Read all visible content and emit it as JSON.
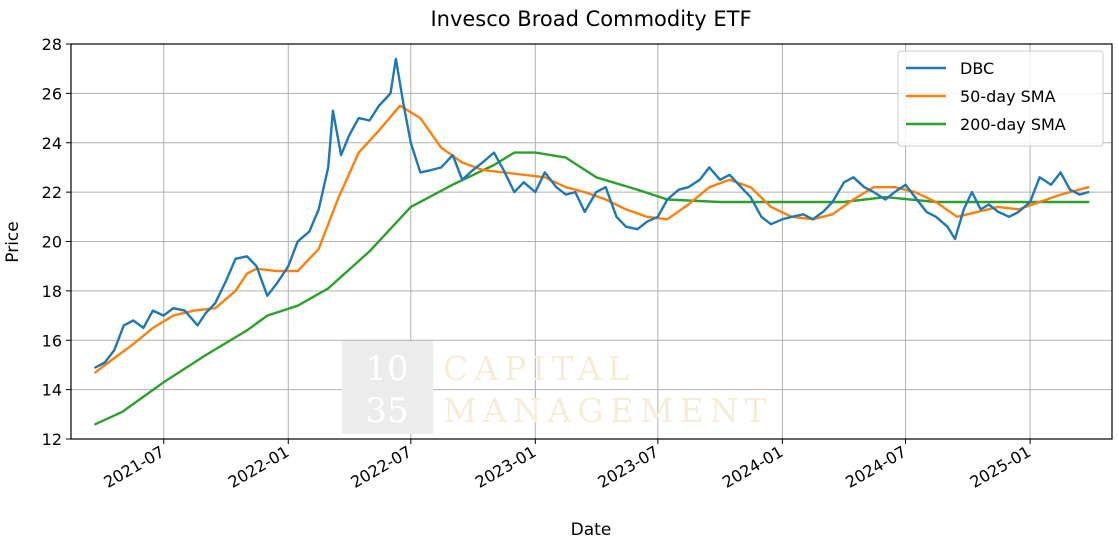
{
  "chart_data": {
    "type": "line",
    "title": "Invesco Broad Commodity ETF",
    "xlabel": "Date",
    "ylabel": "Price",
    "ylim": [
      12,
      28
    ],
    "xlim": [
      "2021-02-14",
      "2025-05-02"
    ],
    "grid": true,
    "legend_position": "top-right",
    "x_ticks": [
      "2021-07",
      "2022-01",
      "2022-07",
      "2023-01",
      "2023-07",
      "2024-01",
      "2024-07",
      "2025-01"
    ],
    "y_ticks": [
      12,
      14,
      16,
      18,
      20,
      22,
      24,
      26,
      28
    ],
    "watermark": [
      "10",
      "35",
      "CAPITAL",
      "MANAGEMENT"
    ],
    "series": [
      {
        "name": "DBC",
        "color": "#1f77b4",
        "points": [
          [
            "2021-03-22",
            14.9
          ],
          [
            "2021-04-05",
            15.1
          ],
          [
            "2021-04-19",
            15.6
          ],
          [
            "2021-05-03",
            16.6
          ],
          [
            "2021-05-17",
            16.8
          ],
          [
            "2021-06-01",
            16.5
          ],
          [
            "2021-06-15",
            17.2
          ],
          [
            "2021-07-01",
            17.0
          ],
          [
            "2021-07-15",
            17.3
          ],
          [
            "2021-08-01",
            17.2
          ],
          [
            "2021-08-20",
            16.6
          ],
          [
            "2021-09-01",
            17.1
          ],
          [
            "2021-09-15",
            17.5
          ],
          [
            "2021-10-01",
            18.4
          ],
          [
            "2021-10-15",
            19.3
          ],
          [
            "2021-11-01",
            19.4
          ],
          [
            "2021-11-15",
            19.0
          ],
          [
            "2021-12-01",
            17.8
          ],
          [
            "2021-12-15",
            18.3
          ],
          [
            "2022-01-01",
            19.0
          ],
          [
            "2022-01-15",
            20.0
          ],
          [
            "2022-02-01",
            20.4
          ],
          [
            "2022-02-15",
            21.3
          ],
          [
            "2022-03-01",
            23.0
          ],
          [
            "2022-03-08",
            25.3
          ],
          [
            "2022-03-20",
            23.5
          ],
          [
            "2022-04-01",
            24.3
          ],
          [
            "2022-04-15",
            25.0
          ],
          [
            "2022-05-01",
            24.9
          ],
          [
            "2022-05-15",
            25.5
          ],
          [
            "2022-06-01",
            26.0
          ],
          [
            "2022-06-09",
            27.4
          ],
          [
            "2022-06-20",
            25.6
          ],
          [
            "2022-07-01",
            24.0
          ],
          [
            "2022-07-15",
            22.8
          ],
          [
            "2022-08-01",
            22.9
          ],
          [
            "2022-08-15",
            23.0
          ],
          [
            "2022-09-01",
            23.5
          ],
          [
            "2022-09-15",
            22.5
          ],
          [
            "2022-10-01",
            22.9
          ],
          [
            "2022-10-15",
            23.2
          ],
          [
            "2022-11-01",
            23.6
          ],
          [
            "2022-11-15",
            22.9
          ],
          [
            "2022-12-01",
            22.0
          ],
          [
            "2022-12-15",
            22.4
          ],
          [
            "2023-01-01",
            22.0
          ],
          [
            "2023-01-15",
            22.8
          ],
          [
            "2023-02-01",
            22.2
          ],
          [
            "2023-02-15",
            21.9
          ],
          [
            "2023-03-01",
            22.0
          ],
          [
            "2023-03-15",
            21.2
          ],
          [
            "2023-04-01",
            22.0
          ],
          [
            "2023-04-15",
            22.2
          ],
          [
            "2023-05-01",
            21.0
          ],
          [
            "2023-05-15",
            20.6
          ],
          [
            "2023-06-01",
            20.5
          ],
          [
            "2023-06-15",
            20.8
          ],
          [
            "2023-07-01",
            21.0
          ],
          [
            "2023-07-15",
            21.7
          ],
          [
            "2023-08-01",
            22.1
          ],
          [
            "2023-08-15",
            22.2
          ],
          [
            "2023-09-01",
            22.5
          ],
          [
            "2023-09-15",
            23.0
          ],
          [
            "2023-10-01",
            22.5
          ],
          [
            "2023-10-15",
            22.7
          ],
          [
            "2023-11-01",
            22.2
          ],
          [
            "2023-11-15",
            21.8
          ],
          [
            "2023-12-01",
            21.0
          ],
          [
            "2023-12-15",
            20.7
          ],
          [
            "2024-01-01",
            20.9
          ],
          [
            "2024-01-15",
            21.0
          ],
          [
            "2024-02-01",
            21.1
          ],
          [
            "2024-02-15",
            20.9
          ],
          [
            "2024-03-01",
            21.2
          ],
          [
            "2024-03-15",
            21.6
          ],
          [
            "2024-04-01",
            22.4
          ],
          [
            "2024-04-15",
            22.6
          ],
          [
            "2024-05-01",
            22.2
          ],
          [
            "2024-05-15",
            22.0
          ],
          [
            "2024-06-01",
            21.7
          ],
          [
            "2024-06-15",
            22.0
          ],
          [
            "2024-07-01",
            22.3
          ],
          [
            "2024-07-15",
            21.8
          ],
          [
            "2024-08-01",
            21.2
          ],
          [
            "2024-08-15",
            21.0
          ],
          [
            "2024-09-01",
            20.6
          ],
          [
            "2024-09-12",
            20.1
          ],
          [
            "2024-09-25",
            21.3
          ],
          [
            "2024-10-07",
            22.0
          ],
          [
            "2024-10-20",
            21.3
          ],
          [
            "2024-11-01",
            21.5
          ],
          [
            "2024-11-15",
            21.2
          ],
          [
            "2024-12-01",
            21.0
          ],
          [
            "2024-12-15",
            21.2
          ],
          [
            "2025-01-01",
            21.6
          ],
          [
            "2025-01-15",
            22.6
          ],
          [
            "2025-02-01",
            22.3
          ],
          [
            "2025-02-15",
            22.8
          ],
          [
            "2025-03-01",
            22.1
          ],
          [
            "2025-03-15",
            21.9
          ],
          [
            "2025-03-28",
            22.0
          ]
        ]
      },
      {
        "name": "50-day SMA",
        "color": "#ff7f0e",
        "points": [
          [
            "2021-03-22",
            14.7
          ],
          [
            "2021-04-15",
            15.2
          ],
          [
            "2021-05-15",
            15.8
          ],
          [
            "2021-06-15",
            16.5
          ],
          [
            "2021-07-15",
            17.0
          ],
          [
            "2021-08-15",
            17.2
          ],
          [
            "2021-09-15",
            17.3
          ],
          [
            "2021-10-15",
            18.0
          ],
          [
            "2021-11-01",
            18.7
          ],
          [
            "2021-11-15",
            18.9
          ],
          [
            "2021-12-15",
            18.8
          ],
          [
            "2022-01-15",
            18.8
          ],
          [
            "2022-02-15",
            19.7
          ],
          [
            "2022-03-15",
            21.7
          ],
          [
            "2022-04-15",
            23.6
          ],
          [
            "2022-05-15",
            24.5
          ],
          [
            "2022-06-15",
            25.5
          ],
          [
            "2022-07-15",
            25.0
          ],
          [
            "2022-08-15",
            23.8
          ],
          [
            "2022-09-15",
            23.2
          ],
          [
            "2022-10-15",
            22.9
          ],
          [
            "2022-11-15",
            22.8
          ],
          [
            "2022-12-15",
            22.7
          ],
          [
            "2023-01-15",
            22.6
          ],
          [
            "2023-02-15",
            22.2
          ],
          [
            "2023-03-15",
            22.0
          ],
          [
            "2023-04-15",
            21.7
          ],
          [
            "2023-05-15",
            21.3
          ],
          [
            "2023-06-15",
            21.0
          ],
          [
            "2023-07-15",
            20.9
          ],
          [
            "2023-08-15",
            21.5
          ],
          [
            "2023-09-15",
            22.2
          ],
          [
            "2023-10-15",
            22.5
          ],
          [
            "2023-11-15",
            22.2
          ],
          [
            "2023-12-15",
            21.4
          ],
          [
            "2024-01-15",
            21.0
          ],
          [
            "2024-02-15",
            20.9
          ],
          [
            "2024-03-15",
            21.1
          ],
          [
            "2024-04-15",
            21.7
          ],
          [
            "2024-05-15",
            22.2
          ],
          [
            "2024-06-15",
            22.2
          ],
          [
            "2024-07-15",
            22.0
          ],
          [
            "2024-08-15",
            21.6
          ],
          [
            "2024-09-15",
            21.0
          ],
          [
            "2024-10-15",
            21.2
          ],
          [
            "2024-11-15",
            21.4
          ],
          [
            "2024-12-15",
            21.3
          ],
          [
            "2025-01-15",
            21.6
          ],
          [
            "2025-02-15",
            21.9
          ],
          [
            "2025-03-28",
            22.2
          ]
        ]
      },
      {
        "name": "200-day SMA",
        "color": "#2ca02c",
        "points": [
          [
            "2021-03-22",
            12.6
          ],
          [
            "2021-05-01",
            13.1
          ],
          [
            "2021-07-01",
            14.3
          ],
          [
            "2021-09-01",
            15.4
          ],
          [
            "2021-11-01",
            16.4
          ],
          [
            "2021-12-01",
            17.0
          ],
          [
            "2022-01-15",
            17.4
          ],
          [
            "2022-03-01",
            18.1
          ],
          [
            "2022-05-01",
            19.6
          ],
          [
            "2022-07-01",
            21.4
          ],
          [
            "2022-09-01",
            22.3
          ],
          [
            "2022-11-01",
            23.1
          ],
          [
            "2022-12-01",
            23.6
          ],
          [
            "2023-01-01",
            23.6
          ],
          [
            "2023-02-15",
            23.4
          ],
          [
            "2023-04-01",
            22.6
          ],
          [
            "2023-06-01",
            22.1
          ],
          [
            "2023-07-15",
            21.7
          ],
          [
            "2023-10-01",
            21.6
          ],
          [
            "2024-01-01",
            21.6
          ],
          [
            "2024-04-01",
            21.6
          ],
          [
            "2024-06-01",
            21.8
          ],
          [
            "2024-08-15",
            21.6
          ],
          [
            "2024-10-01",
            21.6
          ],
          [
            "2025-01-01",
            21.6
          ],
          [
            "2025-03-28",
            21.6
          ]
        ]
      }
    ]
  }
}
